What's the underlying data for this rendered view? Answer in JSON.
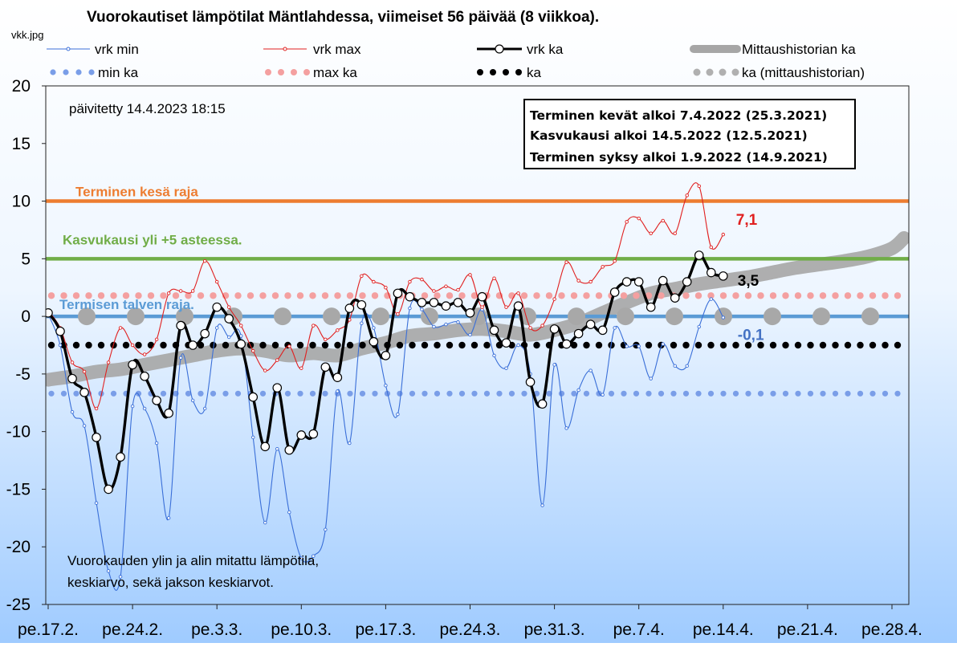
{
  "title": "Vuorokautiset lämpötilat Mäntlahdessa, viimeiset 56 päivää (8 viikkoa).",
  "file_label": "vkk.jpg",
  "updated": "päivitetty 14.4.2023 18:15",
  "footnote": [
    "Vuorokauden  ylin ja alin mitattu lämpötila,",
    "keskiarvo, sekä jakson keskiarvot."
  ],
  "infobox": [
    "Terminen kevät alkoi 7.4.2022  (25.3.2021)",
    "Kasvukausi  alkoi  14.5.2022 (12.5.2021)",
    "Terminen syksy alkoi 1.9.2022  (14.9.2021)"
  ],
  "colors": {
    "min": "#3a6fd8",
    "max": "#e02020",
    "avg": "#000000",
    "hist": "#a6a6a6",
    "min_avg": "#7a9ee8",
    "max_avg": "#f4a0a0",
    "summer": "#ed7d31",
    "growth": "#70ad47",
    "winter": "#5b9bd5",
    "bg_top": "#ffffff",
    "bg_bottom": "#a8d0ff"
  },
  "chart_data": {
    "type": "line",
    "ylim": [
      -25,
      20
    ],
    "yticks": [
      20,
      15,
      10,
      5,
      0,
      -5,
      -10,
      -15,
      -20,
      -25
    ],
    "xlim": [
      0,
      71
    ],
    "xticks": [
      {
        "x": 0,
        "label": "pe.17.2."
      },
      {
        "x": 7,
        "label": "pe.24.2."
      },
      {
        "x": 14,
        "label": "pe.3.3."
      },
      {
        "x": 21,
        "label": "pe.10.3."
      },
      {
        "x": 28,
        "label": "pe.17.3."
      },
      {
        "x": 35,
        "label": "pe.24.3."
      },
      {
        "x": 42,
        "label": "pe.31.3."
      },
      {
        "x": 49,
        "label": "pe.7.4."
      },
      {
        "x": 56,
        "label": "pe.14.4."
      },
      {
        "x": 63,
        "label": "pe.21.4."
      },
      {
        "x": 70,
        "label": "pe.28.4."
      }
    ],
    "legend": [
      {
        "key": "min",
        "label": "vrk min"
      },
      {
        "key": "max",
        "label": "vrk max"
      },
      {
        "key": "avg",
        "label": "vrk ka"
      },
      {
        "key": "hist",
        "label": "Mittaushistorian ka"
      },
      {
        "key": "min_avg",
        "label": "min ka"
      },
      {
        "key": "max_avg",
        "label": "max ka"
      },
      {
        "key": "period_avg",
        "label": "ka"
      },
      {
        "key": "hist_dots",
        "label": "ka (mittaushistorian)"
      }
    ],
    "thresholds": [
      {
        "name": "summer",
        "label": "Terminen kesä raja",
        "value": 10
      },
      {
        "name": "growth",
        "label": "Kasvukausi yli +5 asteessa.",
        "value": 5
      },
      {
        "name": "winter",
        "label": "Termisen talven raja.",
        "value": 0
      }
    ],
    "period_averages": {
      "min_avg": -6.7,
      "max_avg": 1.8,
      "avg": -2.5,
      "hist_avg": 0
    },
    "last_labels": {
      "max": "7,1",
      "avg": "3,5",
      "min": "-0,1"
    },
    "series": [
      {
        "name": "vrk min",
        "key": "min",
        "x": [
          0,
          1,
          2,
          3,
          4,
          5,
          6,
          7,
          8,
          9,
          10,
          11,
          12,
          13,
          14,
          15,
          16,
          17,
          18,
          19,
          20,
          21,
          22,
          23,
          24,
          25,
          26,
          27,
          28,
          29,
          30,
          31,
          32,
          33,
          34,
          35,
          36,
          37,
          38,
          39,
          40,
          41,
          42,
          43,
          44,
          45,
          46,
          47,
          48,
          49,
          50,
          51,
          52,
          53,
          54,
          55,
          56
        ],
        "values": [
          0.2,
          -2.5,
          -8.3,
          -9.5,
          -16.2,
          -22.1,
          -22.6,
          -7.8,
          -8,
          -11,
          -17.5,
          -3.6,
          -7.3,
          -8,
          -1,
          -1.8,
          -1.7,
          -10.5,
          -17.9,
          -11.5,
          -17,
          -21,
          -20.8,
          -18.5,
          -6.5,
          -11,
          -0.6,
          -1,
          -6,
          -8.5,
          0.7,
          0.6,
          -0.9,
          -0.7,
          -0.5,
          -1.6,
          0.6,
          -3.4,
          -4.5,
          -2.5,
          -5,
          -16.4,
          -4.2,
          -9.7,
          -6.4,
          -4.7,
          -6.8,
          -1,
          -2.6,
          -2.6,
          -5.4,
          -2.4,
          -4.3,
          -4.3,
          -0.9,
          1.5,
          -0.1
        ]
      },
      {
        "name": "vrk max",
        "key": "max",
        "x": [
          0,
          1,
          2,
          3,
          4,
          5,
          6,
          7,
          8,
          9,
          10,
          11,
          12,
          13,
          14,
          15,
          16,
          17,
          18,
          19,
          20,
          21,
          22,
          23,
          24,
          25,
          26,
          27,
          28,
          29,
          30,
          31,
          32,
          33,
          34,
          35,
          36,
          37,
          38,
          39,
          40,
          41,
          42,
          43,
          44,
          45,
          46,
          47,
          48,
          49,
          50,
          51,
          52,
          53,
          54,
          55,
          56
        ],
        "values": [
          0.5,
          -1,
          -4,
          -4.8,
          -8,
          -4,
          -1,
          -2.5,
          -3.3,
          -2,
          2,
          2.2,
          2.2,
          4.8,
          3,
          0.8,
          -0.8,
          -3,
          -4.7,
          -3.8,
          -2.6,
          -4.5,
          -0.8,
          -2,
          -1.2,
          -0.3,
          3.5,
          3,
          2.5,
          0.2,
          3,
          3.2,
          2.2,
          2.6,
          2.3,
          3.6,
          0.8,
          3.3,
          0.8,
          2,
          -1,
          -0.8,
          1.5,
          4.7,
          3.1,
          3,
          4.3,
          4.8,
          8.2,
          8.5,
          7.2,
          8.3,
          7.2,
          10.5,
          11.3,
          6,
          7.1
        ]
      },
      {
        "name": "vrk ka",
        "key": "avg",
        "x": [
          0,
          1,
          2,
          3,
          4,
          5,
          6,
          7,
          8,
          9,
          10,
          11,
          12,
          13,
          14,
          15,
          16,
          17,
          18,
          19,
          20,
          21,
          22,
          23,
          24,
          25,
          26,
          27,
          28,
          29,
          30,
          31,
          32,
          33,
          34,
          35,
          36,
          37,
          38,
          39,
          40,
          41,
          42,
          43,
          44,
          45,
          46,
          47,
          48,
          49,
          50,
          51,
          52,
          53,
          54,
          55,
          56
        ],
        "values": [
          0.3,
          -1.3,
          -5.4,
          -6.6,
          -10.5,
          -15,
          -12.2,
          -4.2,
          -5.2,
          -7.3,
          -8.4,
          -0.8,
          -2.5,
          -1.5,
          0.8,
          -0.2,
          -2.4,
          -7,
          -11.3,
          -6.2,
          -11.6,
          -10.3,
          -10.2,
          -4.4,
          -5.3,
          0.7,
          1,
          -2.2,
          -3.4,
          2,
          1.7,
          1.2,
          1.2,
          0.9,
          1.2,
          0.3,
          1.7,
          -1.2,
          -2.3,
          0.9,
          -5.7,
          -7.6,
          -1.1,
          -2.4,
          -1.5,
          -0.7,
          -1.2,
          2.1,
          3,
          3,
          0.8,
          3.1,
          1.6,
          3,
          5.3,
          3.8,
          3.5
        ]
      },
      {
        "name": "Mittaushistorian ka",
        "key": "hist",
        "x": [
          0,
          2,
          4,
          6,
          8,
          10,
          12,
          14,
          16,
          18,
          20,
          22,
          24,
          26,
          28,
          30,
          32,
          34,
          36,
          38,
          40,
          42,
          44,
          46,
          48,
          50,
          52,
          54,
          56,
          58,
          60,
          62,
          64,
          66,
          68,
          70,
          71
        ],
        "values": [
          -5.5,
          -5.2,
          -4.8,
          -4.6,
          -4.2,
          -3.8,
          -3.4,
          -3,
          -2.8,
          -3,
          -3.4,
          -3.2,
          -3.4,
          -2.8,
          -2.3,
          -1.7,
          -1.5,
          -1.2,
          -1.1,
          -1.3,
          -1.6,
          -1.2,
          -0.6,
          0.3,
          1.2,
          2,
          2.4,
          2.8,
          3.1,
          3.4,
          3.8,
          4.2,
          4.5,
          4.8,
          5.2,
          5.9,
          6.8
        ]
      }
    ]
  }
}
